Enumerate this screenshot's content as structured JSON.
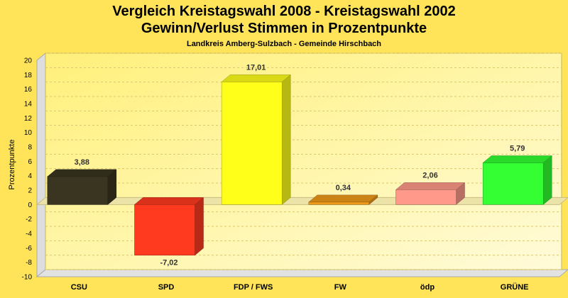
{
  "chart_data": {
    "type": "bar",
    "title_line1": "Vergleich Kreistagswahl 2008 - Kreistagswahl 2002",
    "title_line2": "Gewinn/Verlust Stimmen in Prozentpunkte",
    "subtitle": "Landkreis Amberg-Sulzbach - Gemeinde Hirschbach",
    "ylabel": "Prozentpunkte",
    "xlabel": "",
    "ylim": [
      -10,
      20
    ],
    "yticks": [
      20,
      18,
      16,
      14,
      12,
      10,
      8,
      6,
      4,
      2,
      0,
      -2,
      -4,
      -6,
      -8,
      -10
    ],
    "grid": true,
    "categories": [
      "CSU",
      "SPD",
      "FDP / FWS",
      "FW",
      "ödp",
      "GRÜNE"
    ],
    "values": [
      3.88,
      -7.02,
      17.01,
      0.34,
      2.06,
      5.79
    ],
    "value_labels": [
      "3,88",
      "-7,02",
      "17,01",
      "0,34",
      "2,06",
      "5,79"
    ],
    "colors": [
      "#3a3520",
      "#ff3a1f",
      "#ffff1a",
      "#f09a1a",
      "#ff9a8a",
      "#33ff33"
    ]
  }
}
